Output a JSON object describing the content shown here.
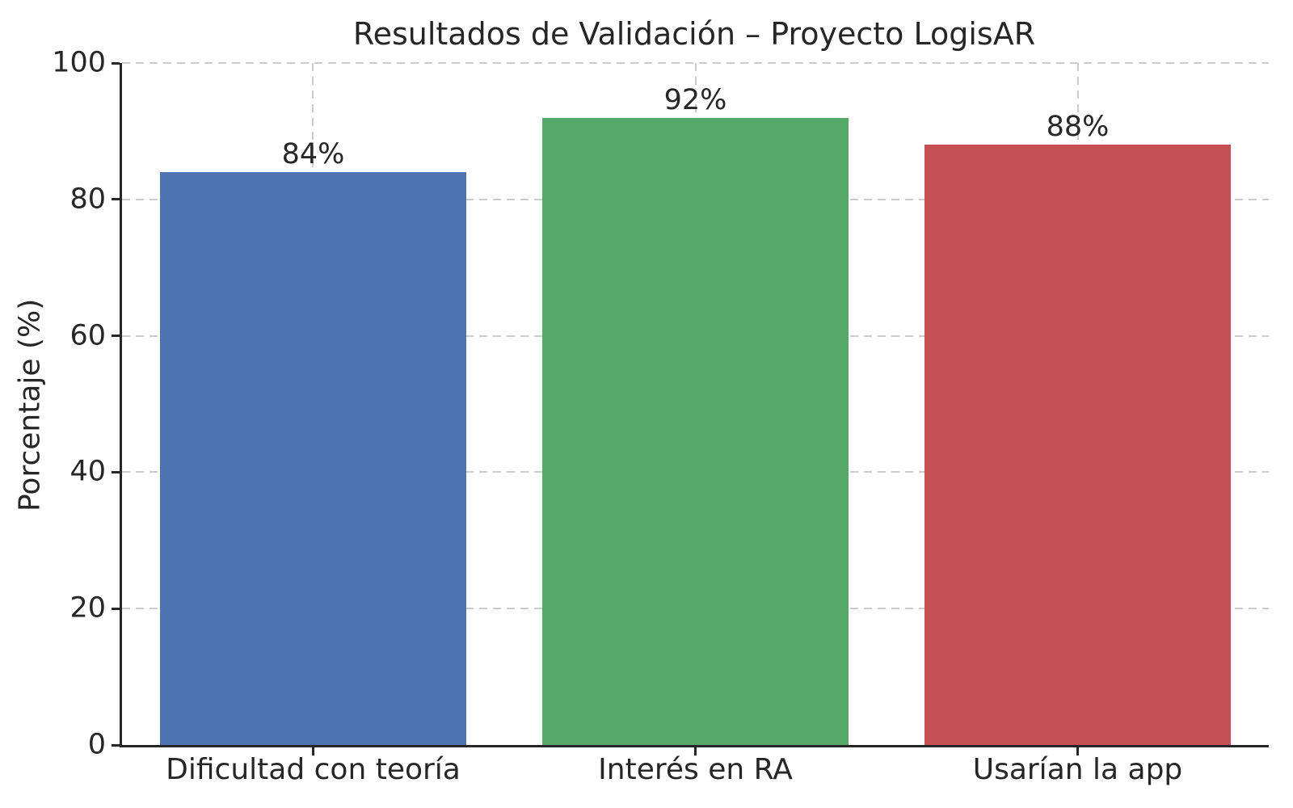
{
  "chart_data": {
    "type": "bar",
    "title": "Resultados de Validación – Proyecto LogisAR",
    "xlabel": "",
    "ylabel": "Porcentaje (%)",
    "categories": [
      "Dificultad con teoría",
      "Interés en RA",
      "Usarían la app"
    ],
    "values": [
      84,
      92,
      88
    ],
    "value_labels": [
      "84%",
      "92%",
      "88%"
    ],
    "bar_colors": [
      "#4C72B0",
      "#55A868",
      "#C44E52"
    ],
    "yticks": [
      0,
      20,
      40,
      60,
      80,
      100
    ],
    "ylim": [
      0,
      100
    ],
    "bar_width_fraction": 0.8,
    "grid": "dashed",
    "grid_color": "#cccccc",
    "axis_color": "#262626",
    "legend": "none"
  }
}
